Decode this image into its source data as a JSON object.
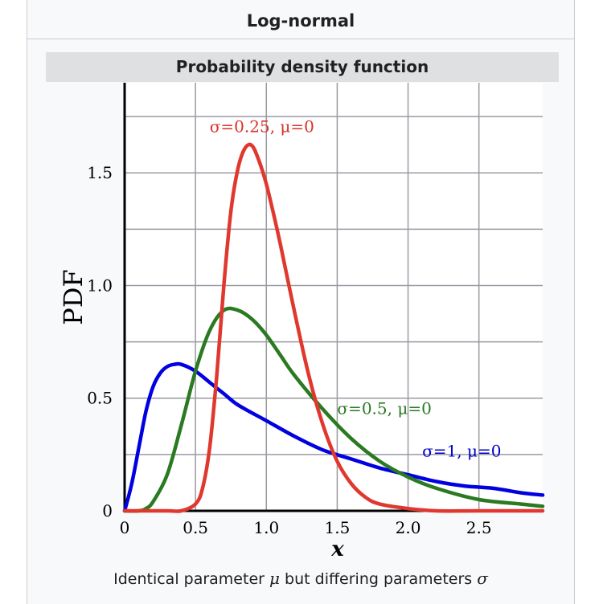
{
  "infobox": {
    "title": "Log-normal",
    "section_header": "Probability density function",
    "caption": {
      "prefix": "Identical parameter ",
      "mu_symbol": "μ",
      "middle": " but differing parameters ",
      "sigma_symbol": "σ"
    }
  },
  "chart_data": {
    "type": "line",
    "xlabel": "x",
    "ylabel": "PDF",
    "xlim": [
      0,
      2.95
    ],
    "ylim": [
      0,
      1.9
    ],
    "grid": true,
    "x_ticks": [
      0,
      0.5,
      1.0,
      1.5,
      2.0,
      2.5
    ],
    "x_tick_labels": [
      "0",
      "0.5",
      "1.0",
      "1.5",
      "2.0",
      "2.5"
    ],
    "y_ticks": [
      0,
      0.5,
      1.0,
      1.5
    ],
    "y_tick_labels": [
      "0",
      "0.5",
      "1.0",
      "1.5"
    ],
    "series": [
      {
        "name": "σ=1, μ=0",
        "color": "#0000e0",
        "x": [
          0.0,
          0.05,
          0.1,
          0.15,
          0.2,
          0.25,
          0.3,
          0.35,
          0.4,
          0.5,
          0.6,
          0.7,
          0.8,
          1.0,
          1.2,
          1.4,
          1.6,
          1.8,
          2.0,
          2.2,
          2.4,
          2.6,
          2.8,
          2.95
        ],
        "y": [
          0.0,
          0.12,
          0.28,
          0.44,
          0.55,
          0.61,
          0.64,
          0.65,
          0.65,
          0.62,
          0.57,
          0.52,
          0.47,
          0.4,
          0.33,
          0.27,
          0.23,
          0.19,
          0.16,
          0.13,
          0.11,
          0.1,
          0.08,
          0.07
        ],
        "label_x": 2.1,
        "label_y": 0.24,
        "label_color": "#0000cc"
      },
      {
        "name": "σ=0.5, μ=0",
        "color": "#2a7a22",
        "x": [
          0.0,
          0.1,
          0.15,
          0.2,
          0.3,
          0.4,
          0.5,
          0.6,
          0.7,
          0.8,
          0.9,
          1.0,
          1.1,
          1.2,
          1.4,
          1.6,
          1.8,
          2.0,
          2.2,
          2.5,
          2.8,
          2.95
        ],
        "y": [
          0.0,
          0.0,
          0.01,
          0.04,
          0.16,
          0.38,
          0.62,
          0.8,
          0.89,
          0.89,
          0.85,
          0.78,
          0.69,
          0.6,
          0.45,
          0.32,
          0.22,
          0.15,
          0.1,
          0.05,
          0.03,
          0.02
        ],
        "label_x": 1.5,
        "label_y": 0.43,
        "label_color": "#2a7a22"
      },
      {
        "name": "σ=0.25, μ=0",
        "color": "#e0382e",
        "x": [
          0.0,
          0.3,
          0.4,
          0.5,
          0.55,
          0.6,
          0.65,
          0.7,
          0.75,
          0.8,
          0.85,
          0.9,
          0.95,
          1.0,
          1.05,
          1.1,
          1.2,
          1.3,
          1.4,
          1.5,
          1.6,
          1.7,
          1.8,
          2.0,
          2.2,
          2.5,
          2.95
        ],
        "y": [
          0.0,
          0.0,
          0.0,
          0.03,
          0.1,
          0.28,
          0.6,
          1.0,
          1.33,
          1.52,
          1.61,
          1.62,
          1.55,
          1.45,
          1.32,
          1.18,
          0.88,
          0.6,
          0.38,
          0.22,
          0.12,
          0.06,
          0.03,
          0.01,
          0.0,
          0.0,
          0.0
        ],
        "label_x": 0.6,
        "label_y": 1.68,
        "label_color": "#d8322a"
      }
    ]
  }
}
